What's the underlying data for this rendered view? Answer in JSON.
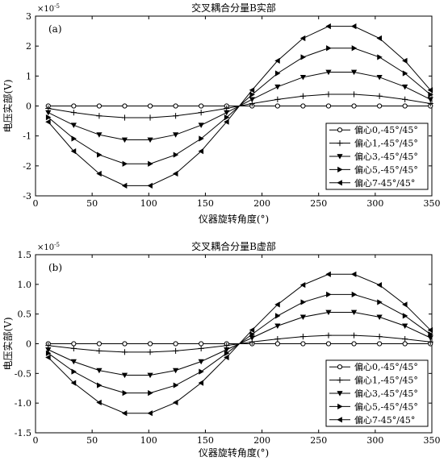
{
  "chart_data": [
    {
      "type": "line",
      "panel_label": "(a)",
      "title": "交叉耦合分量B实部",
      "xlabel": "仪器旋转角度(°)",
      "ylabel": "电压实部(V)",
      "y_exponent": "×10",
      "y_exponent_power": "-5",
      "xlim": [
        0,
        350
      ],
      "ylim": [
        -3,
        3
      ],
      "xticks": [
        0,
        50,
        100,
        150,
        200,
        250,
        300,
        350
      ],
      "xtick_labels": [
        "0",
        "50",
        "100",
        "150",
        "200",
        "250",
        "300",
        "350"
      ],
      "yticks": [
        -3,
        -2,
        -1,
        0,
        1,
        2,
        3
      ],
      "ytick_labels": [
        "-3",
        "-2",
        "-1",
        "0",
        "1",
        "2",
        "3"
      ],
      "x": [
        11.25,
        33.75,
        56.25,
        78.75,
        101.25,
        123.75,
        146.25,
        168.75,
        191.25,
        213.75,
        236.25,
        258.75,
        281.25,
        303.75,
        326.25,
        348.75
      ],
      "legend_position": "lower-right",
      "series": [
        {
          "name": "偏心0,-45°/45°",
          "marker": "circle",
          "values": [
            0,
            0,
            0,
            0,
            0,
            0,
            0,
            0,
            0,
            0,
            0,
            0,
            0,
            0,
            0,
            0
          ]
        },
        {
          "name": "偏心1,-45°/45°",
          "marker": "plus",
          "values": [
            -0.08,
            -0.22,
            -0.33,
            -0.39,
            -0.39,
            -0.33,
            -0.22,
            -0.08,
            0.08,
            0.22,
            0.33,
            0.39,
            0.39,
            0.33,
            0.22,
            0.08
          ]
        },
        {
          "name": "偏心3,-45°/45°",
          "marker": "triangle-down",
          "values": [
            -0.22,
            -0.64,
            -0.96,
            -1.13,
            -1.13,
            -0.96,
            -0.64,
            -0.22,
            0.22,
            0.64,
            0.96,
            1.13,
            1.13,
            0.96,
            0.64,
            0.22
          ]
        },
        {
          "name": "偏心5,-45°/45°",
          "marker": "triangle-right",
          "values": [
            -0.38,
            -1.09,
            -1.63,
            -1.93,
            -1.93,
            -1.63,
            -1.09,
            -0.38,
            0.38,
            1.09,
            1.63,
            1.93,
            1.93,
            1.63,
            1.09,
            0.38
          ]
        },
        {
          "name": "偏心7-45°/45°",
          "marker": "triangle-left",
          "values": [
            -0.53,
            -1.51,
            -2.26,
            -2.66,
            -2.66,
            -2.26,
            -1.51,
            -0.53,
            0.53,
            1.51,
            2.26,
            2.66,
            2.66,
            2.26,
            1.51,
            0.53
          ]
        }
      ]
    },
    {
      "type": "line",
      "panel_label": "(b)",
      "title": "交叉耦合分量B虚部",
      "xlabel": "仪器旋转角度(°)",
      "ylabel": "电压实部(V)",
      "y_exponent": "×10",
      "y_exponent_power": "-5",
      "xlim": [
        0,
        350
      ],
      "ylim": [
        -1.5,
        1.5
      ],
      "xticks": [
        0,
        50,
        100,
        150,
        200,
        250,
        300,
        350
      ],
      "xtick_labels": [
        "0",
        "50",
        "100",
        "150",
        "200",
        "250",
        "300",
        "350"
      ],
      "yticks": [
        -1.5,
        -1.0,
        -0.5,
        0,
        0.5,
        1.0,
        1.5
      ],
      "ytick_labels": [
        "-1.5",
        "-1.0",
        "-0.5",
        "0",
        "0.5",
        "1.0",
        "1.5"
      ],
      "x": [
        11.25,
        33.75,
        56.25,
        78.75,
        101.25,
        123.75,
        146.25,
        168.75,
        191.25,
        213.75,
        236.25,
        258.75,
        281.25,
        303.75,
        326.25,
        348.75
      ],
      "legend_position": "lower-right",
      "series": [
        {
          "name": "偏心0,-45°/45°",
          "marker": "circle",
          "values": [
            0,
            0,
            0,
            0,
            0,
            0,
            0,
            0,
            0,
            0,
            0,
            0,
            0,
            0,
            0,
            0
          ]
        },
        {
          "name": "偏心1,-45°/45°",
          "marker": "plus",
          "values": [
            -0.03,
            -0.08,
            -0.12,
            -0.14,
            -0.14,
            -0.12,
            -0.08,
            -0.03,
            0.03,
            0.08,
            0.12,
            0.14,
            0.14,
            0.12,
            0.08,
            0.03
          ]
        },
        {
          "name": "偏心3,-45°/45°",
          "marker": "triangle-down",
          "values": [
            -0.1,
            -0.3,
            -0.45,
            -0.53,
            -0.53,
            -0.45,
            -0.3,
            -0.1,
            0.1,
            0.3,
            0.45,
            0.53,
            0.53,
            0.45,
            0.3,
            0.1
          ]
        },
        {
          "name": "偏心5,-45°/45°",
          "marker": "triangle-right",
          "values": [
            -0.16,
            -0.47,
            -0.7,
            -0.83,
            -0.83,
            -0.7,
            -0.47,
            -0.16,
            0.16,
            0.47,
            0.7,
            0.83,
            0.83,
            0.7,
            0.47,
            0.16
          ]
        },
        {
          "name": "偏心7-45°/45°",
          "marker": "triangle-left",
          "values": [
            -0.23,
            -0.66,
            -0.99,
            -1.17,
            -1.17,
            -0.99,
            -0.66,
            -0.23,
            0.23,
            0.66,
            0.99,
            1.17,
            1.17,
            0.99,
            0.66,
            0.23
          ]
        }
      ]
    }
  ]
}
